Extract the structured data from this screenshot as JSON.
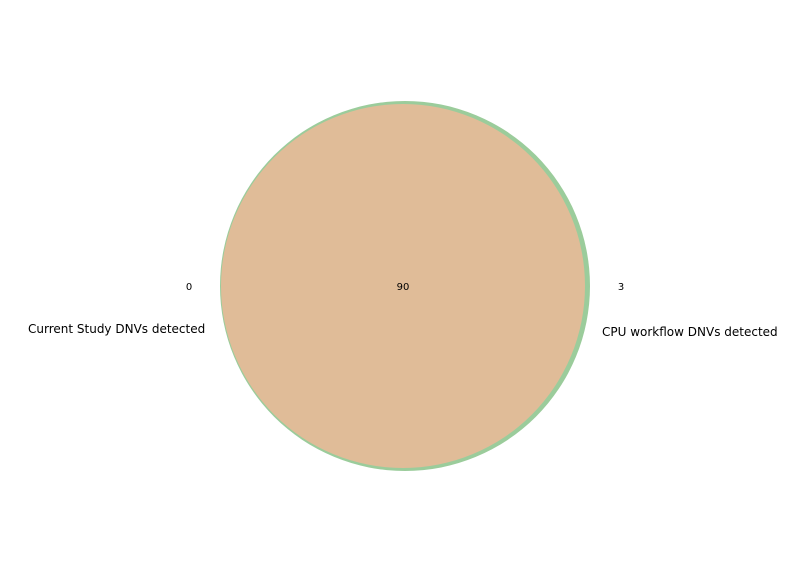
{
  "venn": {
    "sets": [
      {
        "label": "Current Study DNVs detected",
        "color": "#e0bc98"
      },
      {
        "label": "CPU workflow DNVs detected",
        "color": "#9bcc9b"
      }
    ],
    "regions": {
      "only_a": "0",
      "intersection": "90",
      "only_b": "3"
    }
  }
}
